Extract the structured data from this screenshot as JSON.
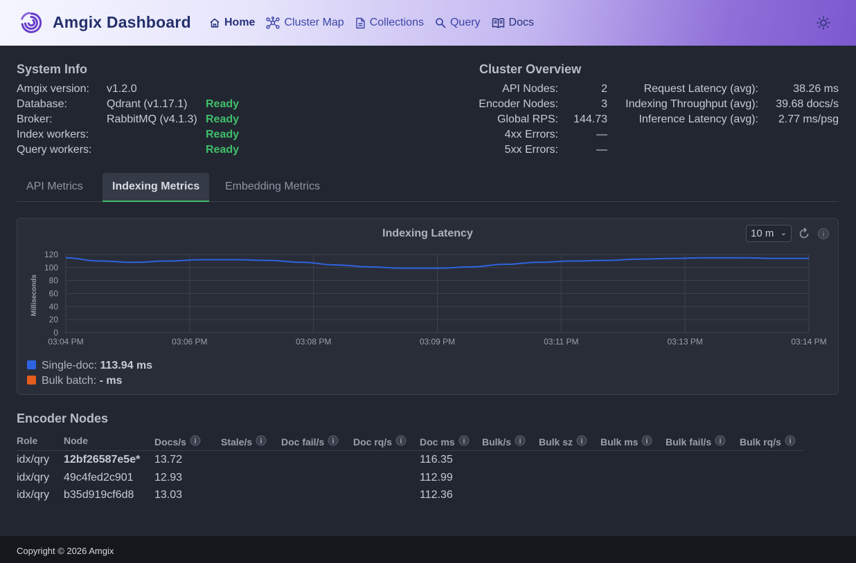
{
  "header": {
    "brand": "Amgix Dashboard",
    "nav": [
      {
        "label": "Home",
        "icon": "home-icon"
      },
      {
        "label": "Cluster Map",
        "icon": "cluster-map-icon"
      },
      {
        "label": "Collections",
        "icon": "document-icon"
      },
      {
        "label": "Query",
        "icon": "search-icon"
      },
      {
        "label": "Docs",
        "icon": "book-icon"
      }
    ],
    "theme_icon": "sun-icon"
  },
  "system_info": {
    "title": "System Info",
    "rows": [
      {
        "label": "Amgix version:",
        "value": "v1.2.0",
        "status": ""
      },
      {
        "label": "Database:",
        "value": "Qdrant (v1.17.1)",
        "status": "Ready"
      },
      {
        "label": "Broker:",
        "value": "RabbitMQ (v4.1.3)",
        "status": "Ready"
      },
      {
        "label": "Index workers:",
        "value": "",
        "status": "Ready"
      },
      {
        "label": "Query workers:",
        "value": "",
        "status": "Ready"
      }
    ]
  },
  "cluster_overview": {
    "title": "Cluster Overview",
    "left": [
      {
        "label": "API Nodes:",
        "value": "2"
      },
      {
        "label": "Encoder Nodes:",
        "value": "3"
      },
      {
        "label": "Global RPS:",
        "value": "144.73"
      },
      {
        "label": "4xx Errors:",
        "value": "—"
      },
      {
        "label": "5xx Errors:",
        "value": "—"
      }
    ],
    "right": [
      {
        "label": "Request Latency (avg):",
        "value": "38.26 ms"
      },
      {
        "label": "Indexing Throughput (avg):",
        "value": "39.68 docs/s"
      },
      {
        "label": "Inference Latency (avg):",
        "value": "2.77 ms/psg"
      }
    ]
  },
  "tabs": [
    "API Metrics",
    "Indexing Metrics",
    "Embedding Metrics"
  ],
  "active_tab": "Indexing Metrics",
  "chart_panel": {
    "range": "10 m",
    "legend": [
      {
        "name": "Single-doc:",
        "value": "113.94 ms",
        "color": "#2f63e0"
      },
      {
        "name": "Bulk batch:",
        "value": "- ms",
        "color": "#e35d1c"
      }
    ]
  },
  "chart_data": {
    "type": "line",
    "title": "Indexing Latency",
    "ylabel": "Milliseconds",
    "xlabel": "",
    "ylim": [
      0,
      120
    ],
    "yticks": [
      0,
      20,
      40,
      60,
      80,
      100,
      120
    ],
    "x_tick_labels": [
      "03:04 PM",
      "03:06 PM",
      "03:08 PM",
      "03:09 PM",
      "03:11 PM",
      "03:13 PM",
      "03:14 PM"
    ],
    "grid": true,
    "series": [
      {
        "name": "Single-doc",
        "color": "#2f63e0",
        "values": [
          115,
          110,
          108,
          110,
          112,
          112,
          111,
          108,
          104,
          101,
          99,
          99,
          101,
          105,
          108,
          110,
          111,
          113,
          114,
          115,
          115,
          114,
          114
        ]
      }
    ]
  },
  "encoder_nodes": {
    "title": "Encoder Nodes",
    "columns": [
      "Role",
      "Node",
      "Docs/s",
      "Stale/s",
      "Doc fail/s",
      "Doc rq/s",
      "Doc ms",
      "Bulk/s",
      "Bulk sz",
      "Bulk ms",
      "Bulk fail/s",
      "Bulk rq/s"
    ],
    "rows": [
      {
        "role": "idx/qry",
        "node": "12bf26587e5e*",
        "docs_s": "13.72",
        "doc_ms": "116.35"
      },
      {
        "role": "idx/qry",
        "node": "49c4fed2c901",
        "docs_s": "12.93",
        "doc_ms": "112.99"
      },
      {
        "role": "idx/qry",
        "node": "b35d919cf6d8",
        "docs_s": "13.03",
        "doc_ms": "112.36"
      }
    ]
  },
  "footer": {
    "text": "Copyright © 2026 Amgix"
  }
}
